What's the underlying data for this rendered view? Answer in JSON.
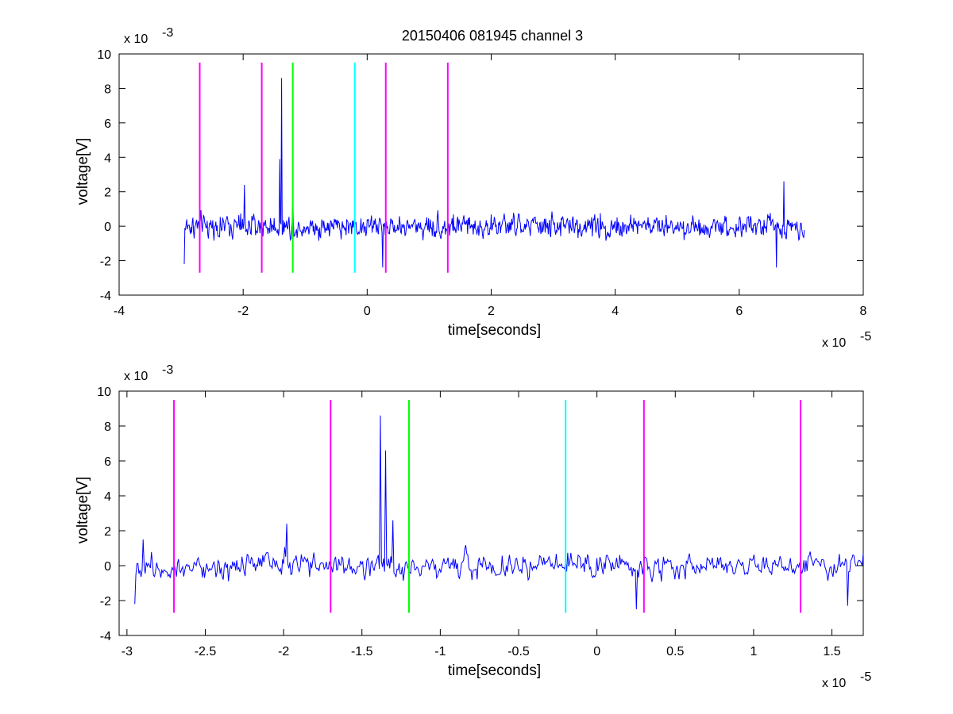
{
  "figure": {
    "title": "20150406 081945 channel 3"
  },
  "chart_data": [
    {
      "type": "line",
      "title": "20150406 081945 channel 3",
      "xlabel": "time[seconds]",
      "ylabel": "voltage[V]",
      "x_multiplier_base": "x 10",
      "x_multiplier_exp": "-5",
      "y_multiplier_base": "x 10",
      "y_multiplier_exp": "-3",
      "xlim": [
        -4,
        8
      ],
      "ylim": [
        -4,
        10
      ],
      "xticks": [
        -4,
        -2,
        0,
        2,
        4,
        6,
        8
      ],
      "xtick_labels": [
        "-4",
        "-2",
        "0",
        "2",
        "4",
        "6",
        "8"
      ],
      "yticks": [
        -4,
        -2,
        0,
        2,
        4,
        6,
        8,
        10
      ],
      "ytick_labels": [
        "-4",
        "-2",
        "0",
        "2",
        "4",
        "6",
        "8",
        "10"
      ],
      "grid": false,
      "legend": "none",
      "signal": {
        "color": "#0000ff",
        "x_range": [
          -2.95,
          7.05
        ],
        "spikes": [
          {
            "x": -1.38,
            "y": 8.6
          },
          {
            "x": -1.41,
            "y": 3.9
          },
          {
            "x": -1.98,
            "y": 2.4
          },
          {
            "x": -1.2,
            "y": 1.8
          },
          {
            "x": 6.72,
            "y": 2.6
          },
          {
            "x": 0.25,
            "y": -2.4
          },
          {
            "x": -2.95,
            "y": -2.2
          },
          {
            "x": 6.6,
            "y": -2.4
          }
        ]
      },
      "vlines": [
        {
          "x": -2.7,
          "color": "#ff00ff",
          "ymin": -2.7,
          "ymax": 9.5
        },
        {
          "x": -1.7,
          "color": "#ff00ff",
          "ymin": -2.7,
          "ymax": 9.5
        },
        {
          "x": -1.2,
          "color": "#00ff00",
          "ymin": -2.7,
          "ymax": 9.5
        },
        {
          "x": -0.2,
          "color": "#00ffff",
          "ymin": -2.7,
          "ymax": 9.5
        },
        {
          "x": 0.3,
          "color": "#ff00ff",
          "ymin": -2.7,
          "ymax": 9.5
        },
        {
          "x": 1.3,
          "color": "#ff00ff",
          "ymin": -2.7,
          "ymax": 9.5
        }
      ]
    },
    {
      "type": "line",
      "title": "",
      "xlabel": "time[seconds]",
      "ylabel": "voltage[V]",
      "x_multiplier_base": "x 10",
      "x_multiplier_exp": "-5",
      "y_multiplier_base": "x 10",
      "y_multiplier_exp": "-3",
      "xlim": [
        -3.05,
        1.7
      ],
      "ylim": [
        -4,
        10
      ],
      "xticks": [
        -3,
        -2.5,
        -2,
        -1.5,
        -1,
        -0.5,
        0,
        0.5,
        1,
        1.5
      ],
      "xtick_labels": [
        "-3",
        "-2.5",
        "-2",
        "-1.5",
        "-1",
        "-0.5",
        "0",
        "0.5",
        "1",
        "1.5"
      ],
      "yticks": [
        -4,
        -2,
        0,
        2,
        4,
        6,
        8,
        10
      ],
      "ytick_labels": [
        "-4",
        "-2",
        "0",
        "2",
        "4",
        "6",
        "8",
        "10"
      ],
      "grid": false,
      "legend": "none",
      "signal": {
        "color": "#0000ff",
        "x_range": [
          -2.95,
          1.7
        ],
        "spikes": [
          {
            "x": -1.38,
            "y": 8.6
          },
          {
            "x": -1.35,
            "y": 6.6
          },
          {
            "x": -1.98,
            "y": 2.4
          },
          {
            "x": -1.3,
            "y": 2.6
          },
          {
            "x": -2.9,
            "y": 1.5
          },
          {
            "x": 0.25,
            "y": -2.5
          },
          {
            "x": -2.95,
            "y": -2.2
          },
          {
            "x": 1.6,
            "y": -2.3
          }
        ]
      },
      "vlines": [
        {
          "x": -2.7,
          "color": "#ff00ff",
          "ymin": -2.7,
          "ymax": 9.5
        },
        {
          "x": -1.7,
          "color": "#ff00ff",
          "ymin": -2.7,
          "ymax": 9.5
        },
        {
          "x": -1.2,
          "color": "#00ff00",
          "ymin": -2.7,
          "ymax": 9.5
        },
        {
          "x": -0.2,
          "color": "#00ffff",
          "ymin": -2.7,
          "ymax": 9.5
        },
        {
          "x": 0.3,
          "color": "#ff00ff",
          "ymin": -2.7,
          "ymax": 9.5
        },
        {
          "x": 1.3,
          "color": "#ff00ff",
          "ymin": -2.7,
          "ymax": 9.5
        }
      ]
    }
  ]
}
